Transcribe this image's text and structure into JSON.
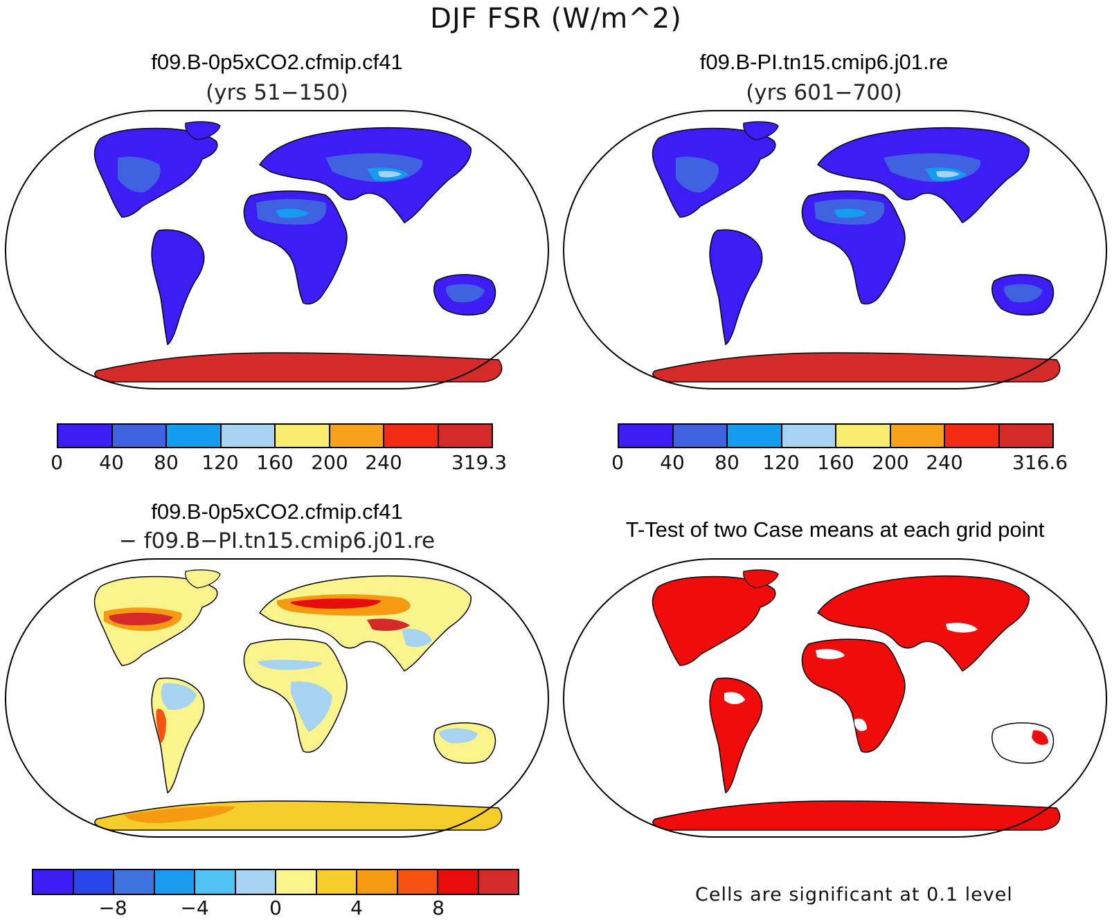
{
  "figure": {
    "title": "DJF FSR (W/m^2)"
  },
  "panels": [
    {
      "id": "case1",
      "title": "f09.B-0p5xCO2.cfmip.cf41",
      "subtitle": "(yrs 51−150)",
      "colorbar": {
        "colors": [
          "#3e1cf5",
          "#3f63e0",
          "#149cf0",
          "#a6d4f0",
          "#f8ec6e",
          "#f6a21a",
          "#f52a12",
          "#d42a2a"
        ],
        "labels": [
          "0",
          "40",
          "80",
          "120",
          "160",
          "200",
          "240",
          "319.3"
        ]
      }
    },
    {
      "id": "case2",
      "title": "f09.B-PI.tn15.cmip6.j01.re",
      "subtitle": "(yrs 601−700)",
      "colorbar": {
        "colors": [
          "#3e1cf5",
          "#3f63e0",
          "#149cf0",
          "#a6d4f0",
          "#f8ec6e",
          "#f6a21a",
          "#f52a12",
          "#d42a2a"
        ],
        "labels": [
          "0",
          "40",
          "80",
          "120",
          "160",
          "200",
          "240",
          "316.6"
        ]
      }
    },
    {
      "id": "diff",
      "title": "f09.B-0p5xCO2.cfmip.cf41",
      "subtitle": "− f09.B−PI.tn15.cmip6.j01.re",
      "colorbar": {
        "colors": [
          "#3e1cf5",
          "#2a46ea",
          "#3f74e0",
          "#1a9bf0",
          "#4fc1f2",
          "#a6d4f0",
          "#fbf38c",
          "#f6ce2c",
          "#f69a12",
          "#f65212",
          "#e80c0c",
          "#d42a2a"
        ],
        "labels": [
          "−8",
          "−4",
          "0",
          "4",
          "8"
        ]
      }
    },
    {
      "id": "ttest",
      "title": "T-Test of two Case means at each grid point",
      "footnote": "Cells are significant at 0.1 level",
      "sig_color": "#f10c0c"
    }
  ]
}
